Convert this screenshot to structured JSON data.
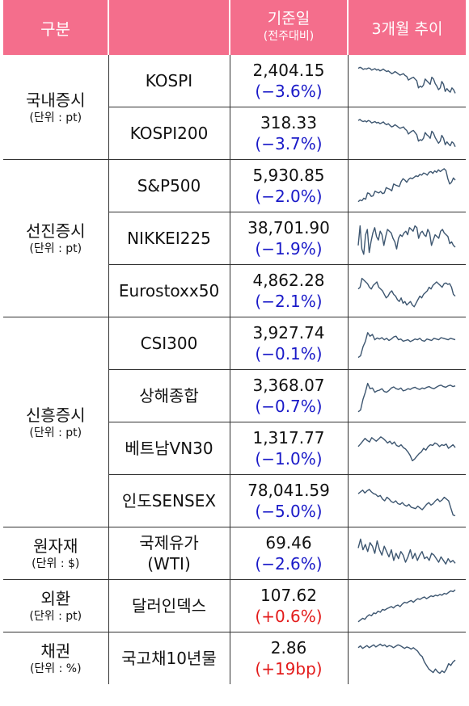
{
  "header": {
    "category": "구분",
    "base_date": "기준일",
    "base_sub": "(전주대비)",
    "trend": "3개월 추이"
  },
  "colors": {
    "header_bg": "#f46e8c",
    "negative": "#1a1ac8",
    "positive": "#e31b1b",
    "sparkline": "#3d5670"
  },
  "groups": [
    {
      "label": "국내증시",
      "unit": "(단위 : pt)",
      "rows": [
        {
          "name": "KOSPI",
          "value": "2,404.15",
          "change": "(−3.6%)",
          "dir": "neg",
          "spark": [
            0.85,
            0.88,
            0.86,
            0.82,
            0.84,
            0.83,
            0.86,
            0.85,
            0.8,
            0.82,
            0.84,
            0.8,
            0.82,
            0.78,
            0.8,
            0.83,
            0.79,
            0.76,
            0.78,
            0.74,
            0.7,
            0.72,
            0.76,
            0.73,
            0.69,
            0.66,
            0.68,
            0.7,
            0.65,
            0.62,
            0.52,
            0.55,
            0.58,
            0.6,
            0.55,
            0.5,
            0.3,
            0.35,
            0.32,
            0.38,
            0.55,
            0.5,
            0.45,
            0.4,
            0.6,
            0.55,
            0.42,
            0.35,
            0.25,
            0.3,
            0.48,
            0.4,
            0.2,
            0.28,
            0.22,
            0.18,
            0.3,
            0.25,
            0.15
          ]
        },
        {
          "name": "KOSPI200",
          "value": "318.33",
          "change": "(−3.7%)",
          "dir": "neg",
          "spark": [
            0.86,
            0.89,
            0.85,
            0.83,
            0.85,
            0.82,
            0.86,
            0.84,
            0.79,
            0.81,
            0.83,
            0.79,
            0.81,
            0.77,
            0.79,
            0.82,
            0.77,
            0.74,
            0.77,
            0.72,
            0.68,
            0.7,
            0.74,
            0.71,
            0.67,
            0.64,
            0.66,
            0.68,
            0.62,
            0.58,
            0.48,
            0.52,
            0.56,
            0.58,
            0.52,
            0.46,
            0.28,
            0.32,
            0.3,
            0.36,
            0.52,
            0.46,
            0.42,
            0.36,
            0.56,
            0.5,
            0.38,
            0.3,
            0.22,
            0.28,
            0.44,
            0.36,
            0.18,
            0.26,
            0.2,
            0.15,
            0.26,
            0.22,
            0.12
          ]
        }
      ]
    },
    {
      "label": "선진증시",
      "unit": "(단위 : pt)",
      "rows": [
        {
          "name": "S&P500",
          "value": "5,930.85",
          "change": "(−2.0%)",
          "dir": "neg",
          "spark": [
            0.05,
            0.1,
            0.08,
            0.15,
            0.12,
            0.3,
            0.28,
            0.2,
            0.22,
            0.35,
            0.32,
            0.3,
            0.34,
            0.28,
            0.3,
            0.45,
            0.42,
            0.4,
            0.36,
            0.55,
            0.52,
            0.5,
            0.48,
            0.62,
            0.7,
            0.66,
            0.6,
            0.68,
            0.72,
            0.7,
            0.74,
            0.78,
            0.76,
            0.82,
            0.8,
            0.86,
            0.84,
            0.8,
            0.88,
            0.9,
            0.85,
            0.92,
            0.88,
            0.95,
            0.9,
            0.94,
            0.98,
            0.93,
            0.7,
            0.55,
            0.6,
            0.72,
            0.66
          ]
        },
        {
          "name": "NIKKEI225",
          "value": "38,701.90",
          "change": "(−1.9%)",
          "dir": "neg",
          "spark": [
            0.3,
            0.85,
            0.2,
            0.05,
            0.6,
            0.75,
            0.1,
            0.4,
            0.65,
            0.8,
            0.55,
            0.45,
            0.7,
            0.6,
            0.3,
            0.55,
            0.75,
            0.7,
            0.65,
            0.5,
            0.4,
            0.2,
            0.5,
            0.6,
            0.55,
            0.65,
            0.7,
            0.6,
            0.8,
            0.75,
            0.7,
            0.85,
            0.8,
            0.5,
            0.65,
            0.7,
            0.6,
            0.55,
            0.75,
            0.65,
            0.3,
            0.45,
            0.6,
            0.55,
            0.5,
            0.7,
            0.75,
            0.65,
            0.6,
            0.55,
            0.35,
            0.4,
            0.3,
            0.25
          ]
        },
        {
          "name": "Eurostoxx50",
          "value": "4,862.28",
          "change": "(−2.1%)",
          "dir": "neg",
          "spark": [
            0.55,
            0.6,
            0.85,
            0.8,
            0.75,
            0.7,
            0.6,
            0.55,
            0.65,
            0.7,
            0.75,
            0.6,
            0.55,
            0.5,
            0.4,
            0.3,
            0.35,
            0.45,
            0.5,
            0.4,
            0.35,
            0.25,
            0.2,
            0.3,
            0.15,
            0.2,
            0.1,
            0.15,
            0.2,
            0.1,
            0.05,
            0.15,
            0.25,
            0.35,
            0.3,
            0.4,
            0.45,
            0.5,
            0.6,
            0.55,
            0.65,
            0.7,
            0.75,
            0.7,
            0.65,
            0.6,
            0.7,
            0.72,
            0.68,
            0.7,
            0.6,
            0.4,
            0.35
          ]
        }
      ]
    },
    {
      "label": "신흥증시",
      "unit": "(단위 : pt)",
      "rows": [
        {
          "name": "CSI300",
          "value": "3,927.74",
          "change": "(−0.1%)",
          "dir": "neg",
          "spark": [
            0.1,
            0.15,
            0.4,
            0.55,
            0.8,
            0.7,
            0.75,
            0.6,
            0.65,
            0.62,
            0.66,
            0.6,
            0.64,
            0.58,
            0.62,
            0.68,
            0.7,
            0.6,
            0.62,
            0.56,
            0.58,
            0.6,
            0.55,
            0.58,
            0.62,
            0.6,
            0.64,
            0.58,
            0.56,
            0.62,
            0.6,
            0.58,
            0.64,
            0.62,
            0.6,
            0.66,
            0.64,
            0.62,
            0.6,
            0.64,
            0.62,
            0.6
          ]
        },
        {
          "name": "상해종합",
          "value": "3,368.07",
          "change": "(−0.7%)",
          "dir": "neg",
          "spark": [
            0.05,
            0.1,
            0.4,
            0.6,
            0.85,
            0.7,
            0.72,
            0.6,
            0.64,
            0.66,
            0.7,
            0.62,
            0.6,
            0.65,
            0.72,
            0.75,
            0.7,
            0.68,
            0.72,
            0.64,
            0.66,
            0.7,
            0.68,
            0.72,
            0.74,
            0.7,
            0.68,
            0.72,
            0.7,
            0.74,
            0.76,
            0.72,
            0.7,
            0.74,
            0.78,
            0.8,
            0.76,
            0.74,
            0.78,
            0.8,
            0.76,
            0.78
          ]
        },
        {
          "name": "베트남VN30",
          "value": "1,317.77",
          "change": "(−1.0%)",
          "dir": "neg",
          "spark": [
            0.55,
            0.62,
            0.7,
            0.78,
            0.72,
            0.68,
            0.8,
            0.75,
            0.7,
            0.76,
            0.82,
            0.78,
            0.72,
            0.65,
            0.7,
            0.62,
            0.68,
            0.58,
            0.55,
            0.6,
            0.52,
            0.48,
            0.4,
            0.3,
            0.15,
            0.2,
            0.28,
            0.35,
            0.4,
            0.5,
            0.45,
            0.55,
            0.6,
            0.58,
            0.65,
            0.62,
            0.55,
            0.6,
            0.58,
            0.62,
            0.5,
            0.55,
            0.6,
            0.52
          ]
        },
        {
          "name": "인도SENSEX",
          "value": "78,041.59",
          "change": "(−5.0%)",
          "dir": "neg",
          "spark": [
            0.7,
            0.75,
            0.8,
            0.72,
            0.78,
            0.82,
            0.75,
            0.7,
            0.68,
            0.62,
            0.65,
            0.55,
            0.5,
            0.6,
            0.55,
            0.48,
            0.45,
            0.5,
            0.42,
            0.4,
            0.45,
            0.38,
            0.35,
            0.4,
            0.32,
            0.3,
            0.28,
            0.35,
            0.3,
            0.25,
            0.32,
            0.4,
            0.45,
            0.38,
            0.42,
            0.5,
            0.55,
            0.48,
            0.52,
            0.6,
            0.55,
            0.5,
            0.3,
            0.1,
            0.08
          ]
        }
      ]
    },
    {
      "label": "원자재",
      "unit": "(단위 : $)",
      "rows": [
        {
          "name": "국제유가",
          "name2": "(WTI)",
          "value": "69.46",
          "change": "(−2.6%)",
          "dir": "neg",
          "spark": [
            0.65,
            0.9,
            0.6,
            0.75,
            0.55,
            0.8,
            0.7,
            0.5,
            0.85,
            0.6,
            0.45,
            0.7,
            0.55,
            0.4,
            0.6,
            0.3,
            0.5,
            0.35,
            0.55,
            0.45,
            0.25,
            0.4,
            0.6,
            0.35,
            0.5,
            0.3,
            0.45,
            0.55,
            0.35,
            0.4,
            0.3,
            0.5,
            0.45,
            0.35,
            0.25,
            0.4,
            0.3,
            0.2,
            0.35,
            0.25,
            0.3,
            0.22
          ]
        }
      ]
    },
    {
      "label": "외환",
      "unit": "(단위 : pt)",
      "rows": [
        {
          "name": "달러인덱스",
          "value": "107.62",
          "change": "(+0.6%)",
          "dir": "pos",
          "spark": [
            0.05,
            0.1,
            0.15,
            0.12,
            0.2,
            0.25,
            0.22,
            0.3,
            0.28,
            0.35,
            0.32,
            0.4,
            0.38,
            0.42,
            0.45,
            0.48,
            0.44,
            0.5,
            0.52,
            0.48,
            0.55,
            0.6,
            0.58,
            0.62,
            0.65,
            0.6,
            0.66,
            0.7,
            0.68,
            0.72,
            0.75,
            0.7,
            0.74,
            0.78,
            0.76,
            0.8,
            0.78,
            0.82,
            0.8,
            0.85,
            0.83,
            0.88,
            0.92,
            0.9,
            0.95
          ]
        }
      ]
    },
    {
      "label": "채권",
      "unit": "(단위 : %)",
      "rows": [
        {
          "name": "국고채10년물",
          "value": "2.86",
          "change": "(+19bp)",
          "dir": "pos",
          "spark": [
            0.8,
            0.85,
            0.78,
            0.82,
            0.86,
            0.8,
            0.84,
            0.88,
            0.82,
            0.86,
            0.9,
            0.85,
            0.88,
            0.82,
            0.86,
            0.84,
            0.8,
            0.84,
            0.88,
            0.86,
            0.82,
            0.78,
            0.82,
            0.8,
            0.76,
            0.8,
            0.75,
            0.7,
            0.6,
            0.55,
            0.4,
            0.3,
            0.2,
            0.15,
            0.1,
            0.2,
            0.12,
            0.08,
            0.15,
            0.1,
            0.2,
            0.35,
            0.3,
            0.4,
            0.45
          ]
        }
      ]
    }
  ]
}
